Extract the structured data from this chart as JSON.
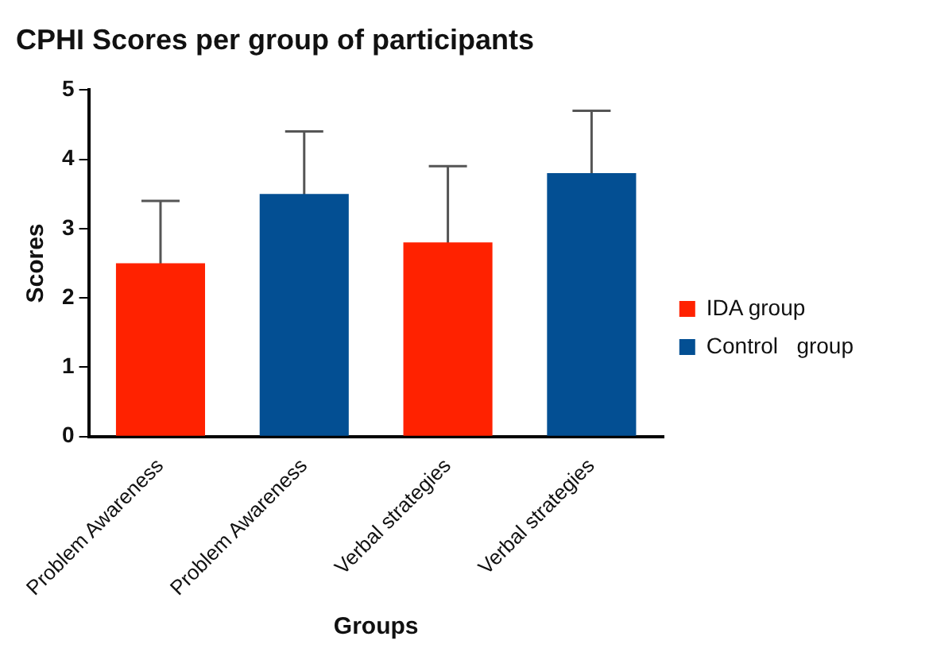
{
  "chart_data": {
    "type": "bar",
    "title": "CPHI Scores per group of participants",
    "xlabel": "Groups",
    "ylabel": "Scores",
    "categories": [
      "Problem Awareness",
      "Problem Awareness",
      "Verbal strategies",
      "Verbal strategies"
    ],
    "series": [
      {
        "name": "IDA group",
        "color": "#ff2200",
        "values": [
          2.5,
          null,
          2.8,
          null
        ],
        "errors": [
          0.9,
          null,
          1.1,
          null
        ]
      },
      {
        "name": "Control   group",
        "color": "#034f93",
        "values": [
          null,
          3.5,
          null,
          3.8
        ],
        "errors": [
          null,
          0.9,
          null,
          0.9
        ]
      }
    ],
    "ylim": [
      0,
      5
    ],
    "yticks": [
      0,
      1,
      2,
      3,
      4,
      5
    ],
    "grid": false,
    "legend": "right"
  }
}
